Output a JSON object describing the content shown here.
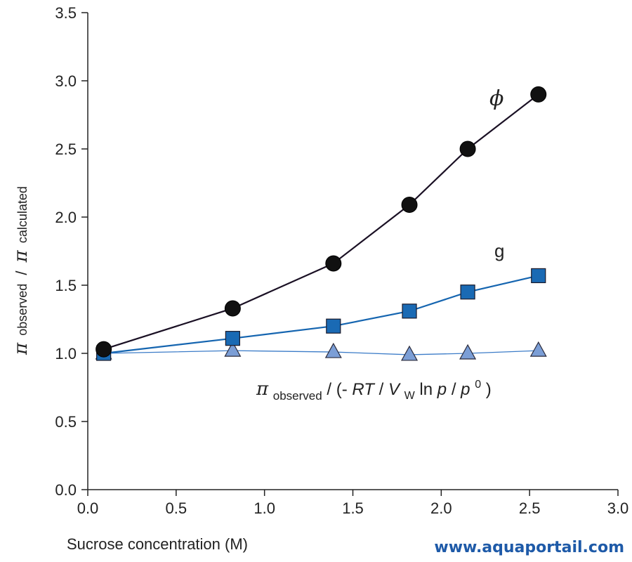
{
  "chart_data": {
    "type": "line",
    "title": "",
    "xlabel": "Sucrose concentration (M)",
    "ylabel": {
      "pi": "π",
      "sub1": "observed",
      "sep": "/",
      "sub2": "calculated"
    },
    "xlim": [
      0.0,
      3.0
    ],
    "ylim": [
      0.0,
      3.5
    ],
    "x_ticks": [
      "0.0",
      "0.5",
      "1.0",
      "1.5",
      "2.0",
      "2.5",
      "3.0"
    ],
    "y_ticks": [
      "0.0",
      "0.5",
      "1.0",
      "1.5",
      "2.0",
      "2.5",
      "3.0",
      "3.5"
    ],
    "grid": false,
    "legend": "none",
    "x": [
      0.09,
      0.82,
      1.39,
      1.82,
      2.15,
      2.55
    ],
    "series": [
      {
        "key": "phi",
        "marker": "circle",
        "color": "#1a1a1a",
        "line_color": "#1a1024",
        "values": [
          1.03,
          1.33,
          1.66,
          2.09,
          2.5,
          2.9
        ]
      },
      {
        "key": "g",
        "marker": "square",
        "color": "#1a6ab4",
        "line_color": "#1565b0",
        "values": [
          1.0,
          1.11,
          1.2,
          1.31,
          1.45,
          1.57
        ]
      },
      {
        "key": "ratio",
        "marker": "triangle",
        "color": "#7b9ed6",
        "line_color": "#3c7cc8",
        "values": [
          1.0,
          1.02,
          1.01,
          0.99,
          1.0,
          1.02
        ]
      }
    ],
    "annotations": {
      "phi_label": "ϕ",
      "g_label": "g",
      "ratio_label": {
        "pi": "π",
        "sub": "observed",
        "mid": " / (-",
        "RT": "RT",
        "slash": "/",
        "V": "V",
        "Vsub": "W",
        "ln": " ln ",
        "p": "p",
        "slash2": "/",
        "p0": "p",
        "sup": "0",
        "close": ")"
      }
    }
  },
  "watermark": "www.aquaportail.com"
}
